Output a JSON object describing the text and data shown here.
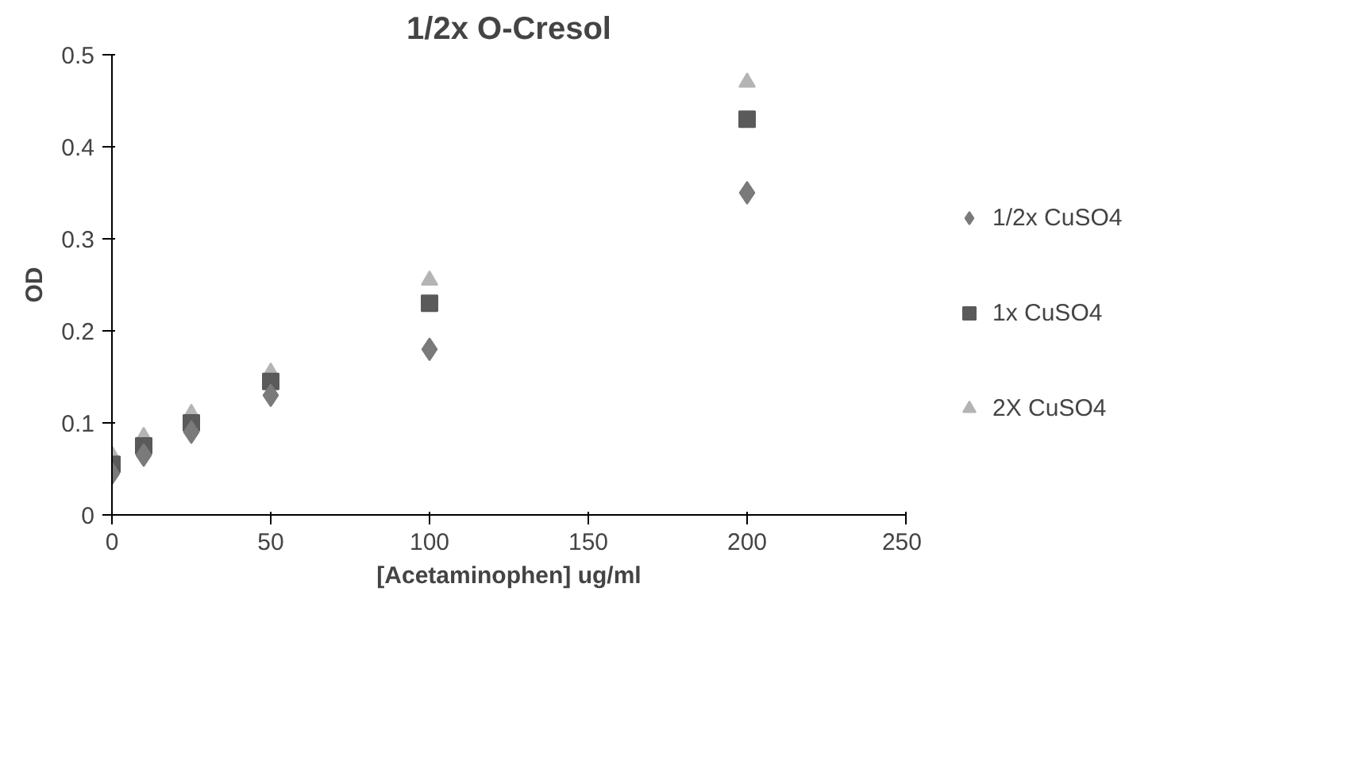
{
  "chart_data": {
    "type": "scatter",
    "title": "1/2x O-Cresol",
    "xlabel": "[Acetaminophen] ug/ml",
    "ylabel": "OD",
    "x": [
      0,
      10,
      25,
      50,
      100,
      200
    ],
    "xlim": [
      0,
      250
    ],
    "xticks": [
      0,
      50,
      100,
      150,
      200,
      250
    ],
    "ylim": [
      0,
      0.5
    ],
    "yticks": [
      0,
      0.1,
      0.2,
      0.3,
      0.4,
      0.5
    ],
    "grid": false,
    "legend": "right",
    "series": [
      {
        "name": "1/2x CuSO4",
        "color": "#7a7a7a",
        "marker": "diamond",
        "values": [
          0.045,
          0.065,
          0.09,
          0.13,
          0.18,
          0.35
        ]
      },
      {
        "name": "1x CuSO4",
        "color": "#5a5a5a",
        "marker": "square",
        "values": [
          0.055,
          0.075,
          0.1,
          0.145,
          0.23,
          0.43
        ]
      },
      {
        "name": "2X CuSO4",
        "color": "#b4b4b4",
        "marker": "triangle",
        "values": [
          0.065,
          0.085,
          0.11,
          0.155,
          0.255,
          0.47
        ]
      }
    ]
  }
}
